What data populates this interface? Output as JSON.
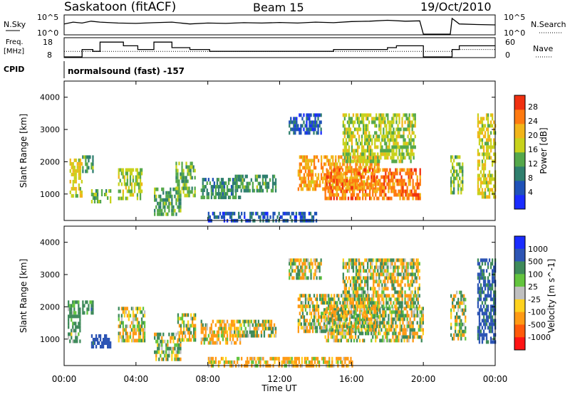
{
  "header": {
    "station": "Saskatoon (fitACF)",
    "beam": "Beam 15",
    "date": "19/Oct/2010"
  },
  "noise_panel": {
    "left_label": "N.Sky",
    "right_label": "N.Search",
    "left_ticks": [
      "10^5",
      "10^0"
    ],
    "right_ticks": [
      "10^5",
      "10^0"
    ]
  },
  "freq_panel": {
    "left_label_1": "Freq.",
    "left_label_2": "[MHz]",
    "right_label": "Nave",
    "left_ticks": [
      "18",
      "8"
    ],
    "right_ticks": [
      "60",
      "0"
    ]
  },
  "cpid": {
    "label": "CPID",
    "value": "normalsound (fast) -157"
  },
  "x_axis": {
    "label": "Time UT",
    "ticks": [
      "00:00",
      "04:00",
      "08:00",
      "12:00",
      "16:00",
      "20:00",
      "00:00"
    ]
  },
  "power_colorbar": {
    "label": "Power [dB]",
    "ticks": [
      "28",
      "24",
      "20",
      "16",
      "12",
      "8",
      "4"
    ],
    "colors": [
      "#1a2cff",
      "#1f52b8",
      "#2f7f6e",
      "#55a84b",
      "#c8d21c",
      "#f2b51a",
      "#ff7a10",
      "#f03010"
    ]
  },
  "velocity_colorbar": {
    "label": "Velocity [m s^-1]",
    "ticks": [
      "1000",
      "500",
      "100",
      "25",
      "-25",
      "-100",
      "-500",
      "-1000"
    ],
    "colors": [
      "#1a2cff",
      "#2d55b5",
      "#3e8a5a",
      "#63c43e",
      "#bfbfbf",
      "#ffd21e",
      "#ff9a14",
      "#ff5a0a",
      "#ff1414"
    ]
  },
  "chart_data": [
    {
      "type": "line",
      "title": "",
      "ylabel": "N.Sky",
      "ylim": [
        "10^0",
        "10^5"
      ],
      "x_range_hours": [
        0,
        24
      ],
      "series": [
        {
          "name": "N.Sky",
          "x": [
            0.0,
            0.5,
            1.0,
            1.5,
            2.0,
            3.0,
            4.0,
            5.0,
            6.0,
            7.0,
            8.0,
            9.0,
            10.0,
            11.0,
            12.0,
            13.0,
            14.0,
            15.0,
            16.0,
            17.0,
            18.0,
            19.0,
            19.8,
            20.0,
            21.5,
            21.6,
            22.0,
            23.0,
            24.0
          ],
          "y_fraction": [
            0.55,
            0.65,
            0.6,
            0.7,
            0.65,
            0.6,
            0.58,
            0.62,
            0.65,
            0.55,
            0.6,
            0.58,
            0.62,
            0.6,
            0.63,
            0.6,
            0.65,
            0.62,
            0.68,
            0.7,
            0.75,
            0.7,
            0.72,
            0.0,
            0.0,
            0.85,
            0.55,
            0.52,
            0.5
          ]
        }
      ]
    },
    {
      "type": "line",
      "title": "",
      "ylabel": "Freq. [MHz]",
      "ylim": [
        8,
        18
      ],
      "x_range_hours": [
        0,
        24
      ],
      "series": [
        {
          "name": "Freq.",
          "x": [
            0.0,
            0.9,
            1.0,
            1.6,
            2.0,
            3.1,
            3.3,
            4.0,
            4.1,
            4.8,
            5.0,
            6.0,
            7.0,
            7.1,
            8.1,
            12.0,
            14.0,
            15.0,
            16.0,
            17.0,
            18.0,
            18.5,
            19.9,
            20.0,
            21.5,
            21.6,
            22.0,
            24.0
          ],
          "y": [
            8,
            8,
            12,
            11,
            16,
            16,
            14,
            14,
            12,
            12,
            16,
            13,
            12,
            12,
            11,
            11,
            11,
            12,
            12,
            12,
            13,
            14,
            14,
            8,
            8,
            12,
            14,
            14
          ]
        },
        {
          "name": "Nave",
          "x": [
            0,
            20,
            21.6,
            24
          ],
          "y": [
            11,
            11,
            12,
            12
          ]
        }
      ]
    },
    {
      "type": "heatmap",
      "title": "",
      "xlabel": "Time UT",
      "ylabel": "Slant Range [km]",
      "ylim": [
        180,
        4500
      ],
      "yticks": [
        1000,
        2000,
        3000,
        4000
      ],
      "x_range_hours": [
        0,
        24
      ],
      "value_label": "Power [dB]",
      "value_range": [
        0,
        30
      ],
      "patches": [
        {
          "t": [
            0.3,
            1.0
          ],
          "r": [
            900,
            2100
          ],
          "v": 18
        },
        {
          "t": [
            1.0,
            1.6
          ],
          "r": [
            1700,
            2200
          ],
          "v": 12
        },
        {
          "t": [
            1.5,
            2.6
          ],
          "r": [
            750,
            1150
          ],
          "v": 14
        },
        {
          "t": [
            3.0,
            4.3
          ],
          "r": [
            900,
            1800
          ],
          "v": 16
        },
        {
          "t": [
            5.0,
            6.5
          ],
          "r": [
            400,
            1200
          ],
          "v": 12
        },
        {
          "t": [
            6.2,
            7.3
          ],
          "r": [
            1000,
            2000
          ],
          "v": 14
        },
        {
          "t": [
            7.6,
            9.8
          ],
          "r": [
            900,
            1500
          ],
          "v": 10
        },
        {
          "t": [
            9.5,
            11.8
          ],
          "r": [
            1100,
            1600
          ],
          "v": 12
        },
        {
          "t": [
            8.0,
            14.0
          ],
          "r": [
            200,
            450
          ],
          "v": 6
        },
        {
          "t": [
            12.5,
            14.3
          ],
          "r": [
            2900,
            3500
          ],
          "v": 6
        },
        {
          "t": [
            13.0,
            17.5
          ],
          "r": [
            1200,
            2200
          ],
          "v": 22
        },
        {
          "t": [
            14.5,
            19.8
          ],
          "r": [
            900,
            1800
          ],
          "v": 24
        },
        {
          "t": [
            15.5,
            19.5
          ],
          "r": [
            2000,
            3500
          ],
          "v": 16
        },
        {
          "t": [
            21.5,
            22.2
          ],
          "r": [
            1000,
            2200
          ],
          "v": 14
        },
        {
          "t": [
            23.0,
            24.0
          ],
          "r": [
            900,
            3500
          ],
          "v": 18
        }
      ]
    },
    {
      "type": "heatmap",
      "title": "",
      "xlabel": "Time UT",
      "ylabel": "Slant Range [km]",
      "ylim": [
        180,
        4500
      ],
      "yticks": [
        1000,
        2000,
        3000,
        4000
      ],
      "x_range_hours": [
        0,
        24
      ],
      "value_label": "Velocity [m s^-1]",
      "value_range": [
        -1000,
        1000
      ],
      "patches": [
        {
          "t": [
            0.2,
            0.9
          ],
          "r": [
            900,
            2200
          ],
          "v": 200
        },
        {
          "t": [
            1.0,
            1.6
          ],
          "r": [
            1800,
            2200
          ],
          "v": 300
        },
        {
          "t": [
            1.5,
            2.6
          ],
          "r": [
            750,
            1150
          ],
          "v": 700
        },
        {
          "t": [
            3.0,
            4.5
          ],
          "r": [
            900,
            2000
          ],
          "v": 0
        },
        {
          "t": [
            5.0,
            6.5
          ],
          "r": [
            400,
            1200
          ],
          "v": 60
        },
        {
          "t": [
            6.3,
            7.3
          ],
          "r": [
            1000,
            1800
          ],
          "v": 0
        },
        {
          "t": [
            7.6,
            9.8
          ],
          "r": [
            900,
            1600
          ],
          "v": -120
        },
        {
          "t": [
            9.5,
            11.8
          ],
          "r": [
            1100,
            1600
          ],
          "v": 0
        },
        {
          "t": [
            8.0,
            16.0
          ],
          "r": [
            200,
            450
          ],
          "v": -150
        },
        {
          "t": [
            12.5,
            14.3
          ],
          "r": [
            2900,
            3500
          ],
          "v": 0
        },
        {
          "t": [
            13.0,
            17.5
          ],
          "r": [
            1200,
            2400
          ],
          "v": 0
        },
        {
          "t": [
            14.5,
            20.0
          ],
          "r": [
            900,
            2000
          ],
          "v": 0
        },
        {
          "t": [
            15.5,
            19.8
          ],
          "r": [
            2000,
            3500
          ],
          "v": 10
        },
        {
          "t": [
            21.5,
            22.3
          ],
          "r": [
            1000,
            2500
          ],
          "v": 0
        },
        {
          "t": [
            23.0,
            24.0
          ],
          "r": [
            900,
            3500
          ],
          "v": 600
        }
      ]
    }
  ]
}
